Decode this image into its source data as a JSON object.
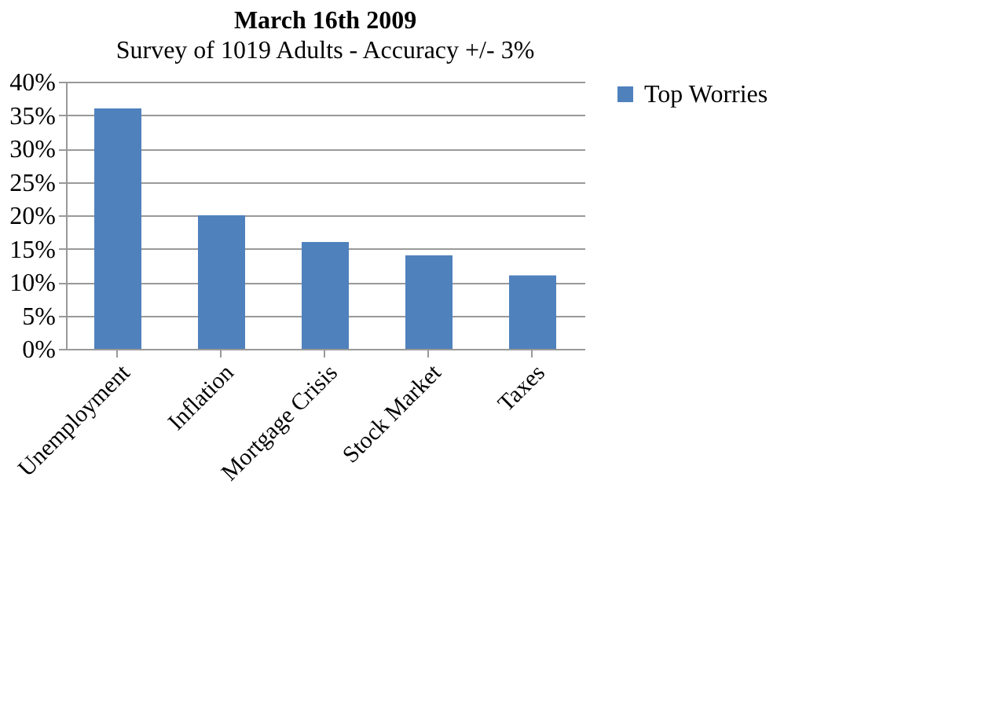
{
  "chart_data": {
    "type": "bar",
    "title": "March 16th 2009",
    "subtitle": "Survey of 1019 Adults - Accuracy +/- 3%",
    "categories": [
      "Unemployment",
      "Inflation",
      "Mortgage Crisis",
      "Stock Market",
      "Taxes"
    ],
    "series": [
      {
        "name": "Top Worries",
        "color": "#4f81bd",
        "values": [
          36,
          20,
          16,
          14,
          11
        ]
      }
    ],
    "ylim": [
      0,
      40
    ],
    "yticks": [
      {
        "value": 0,
        "label": "0%"
      },
      {
        "value": 5,
        "label": "5%"
      },
      {
        "value": 10,
        "label": "10%"
      },
      {
        "value": 15,
        "label": "15%"
      },
      {
        "value": 20,
        "label": "20%"
      },
      {
        "value": 25,
        "label": "25%"
      },
      {
        "value": 30,
        "label": "30%"
      },
      {
        "value": 35,
        "label": "35%"
      },
      {
        "value": 40,
        "label": "40%"
      }
    ],
    "grid": "y",
    "legend": "right"
  }
}
